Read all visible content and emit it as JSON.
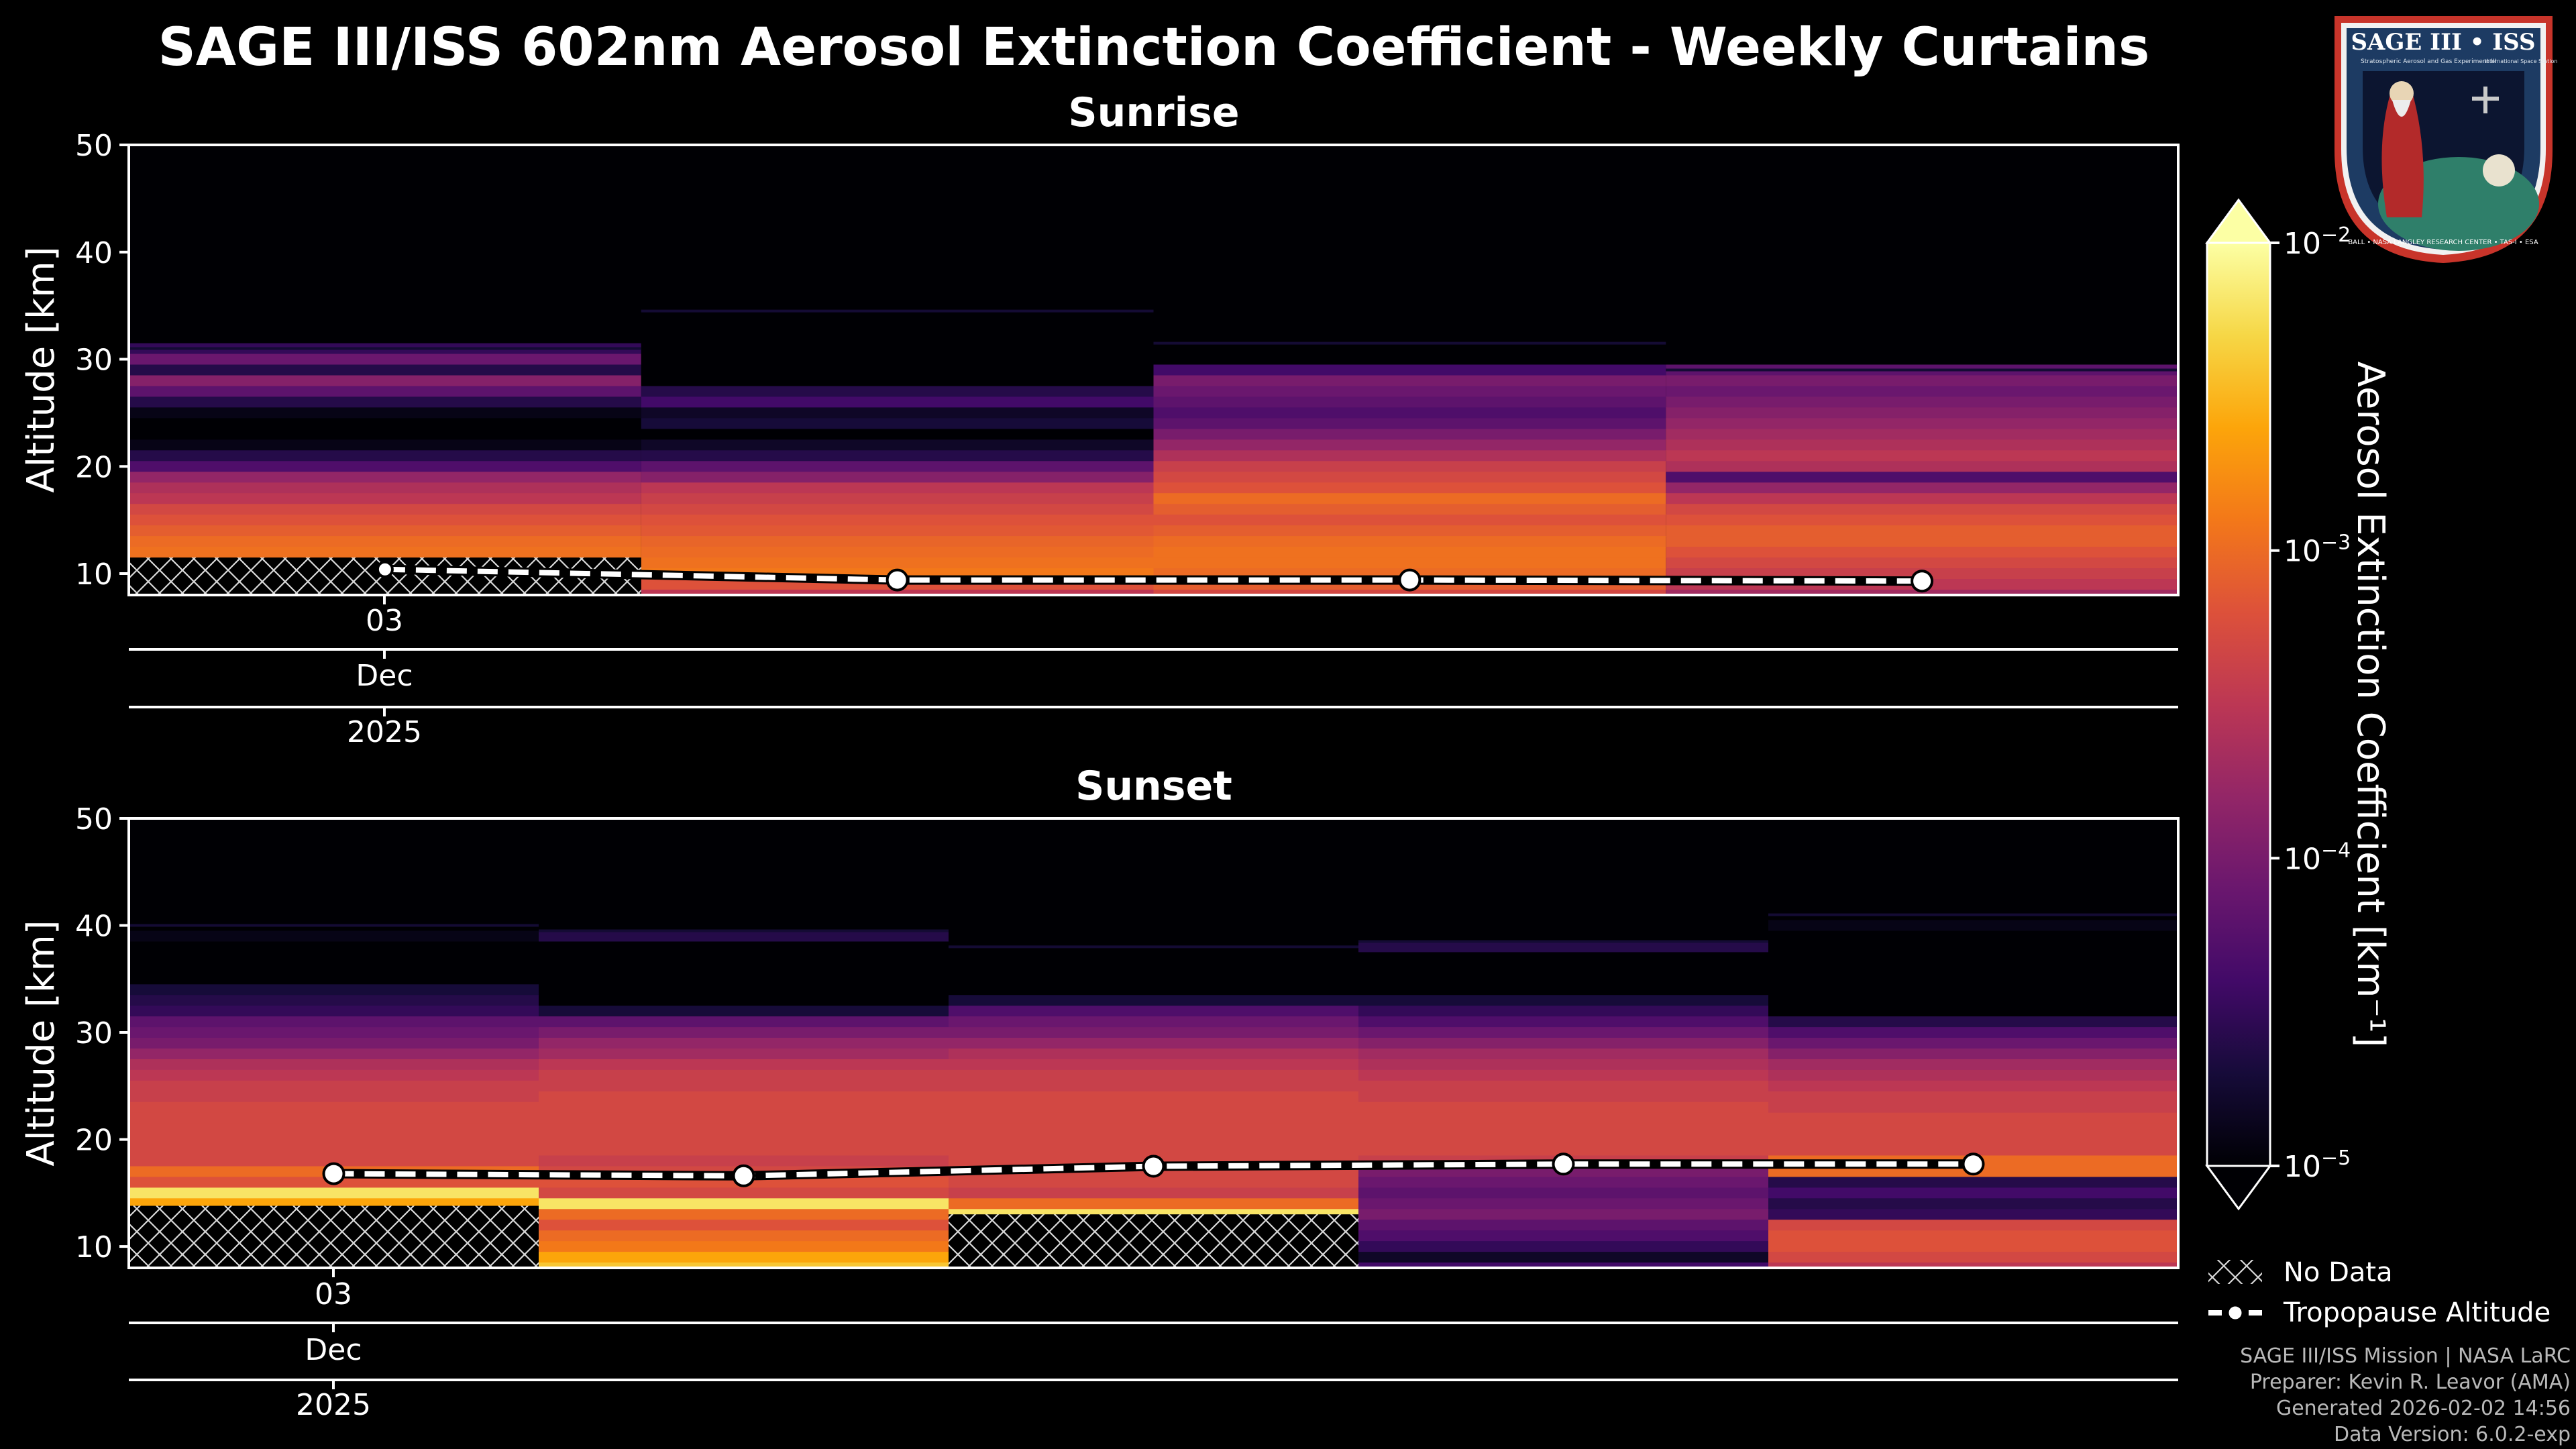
{
  "figure": {
    "title": "SAGE III/ISS 602nm Aerosol Extinction Coefficient - Weekly Curtains",
    "logo": {
      "title": "SAGE III • ISS",
      "subtitle": "Stratospheric Aerosol and Gas Experiment III",
      "station": "International Space Station",
      "ring": "BALL • NASA LANGLEY RESEARCH CENTER • TAS-I • ESA"
    },
    "credits": [
      "SAGE III/ISS Mission | NASA LaRC",
      "Preparer: Kevin R. Leavor (AMA)",
      "Generated 2026-02-02 14:56",
      "Data Version: 6.0.2-exp"
    ],
    "legend": {
      "no_data": "No Data",
      "tropopause": "Tropopause Altitude"
    },
    "colors": {
      "background": "#000000",
      "colormap": "inferno",
      "hatch": "#d9d9d9",
      "tropopause_line": "#ffffff"
    }
  },
  "chart_data": [
    {
      "type": "heatmap",
      "title": "Sunrise",
      "ylabel": "Altitude [km]",
      "ylim": [
        8,
        50
      ],
      "yticks": [
        10,
        20,
        30,
        40,
        50
      ],
      "xtick_label": {
        "day": "03",
        "month": "Dec",
        "year": "2025"
      },
      "columns": [
        {
          "week": 1,
          "top_km": 31,
          "no_data_below_km": 11.5,
          "profile": [
            [
              31,
              -4.5
            ],
            [
              30,
              -4.1
            ],
            [
              29,
              -4.6
            ],
            [
              28,
              -3.9
            ],
            [
              27,
              -4.2
            ],
            [
              26,
              -4.6
            ],
            [
              25,
              -4.9
            ],
            [
              24,
              -5
            ],
            [
              23,
              -5
            ],
            [
              22,
              -4.9
            ],
            [
              21,
              -4.6
            ],
            [
              20,
              -4.3
            ],
            [
              19,
              -3.8
            ],
            [
              18,
              -3.6
            ],
            [
              17,
              -3.5
            ],
            [
              16,
              -3.3
            ],
            [
              15,
              -3.2
            ],
            [
              14,
              -3.1
            ],
            [
              13,
              -3.0
            ],
            [
              12,
              -2.95
            ],
            [
              11,
              -2.95
            ]
          ]
        },
        {
          "week": 2,
          "top_km": 34.5,
          "no_data_below_km": null,
          "profile": [
            [
              34,
              -5
            ],
            [
              33,
              -5
            ],
            [
              32,
              -5
            ],
            [
              31,
              -5
            ],
            [
              30,
              -5
            ],
            [
              29,
              -5
            ],
            [
              28,
              -5
            ],
            [
              27,
              -4.6
            ],
            [
              26,
              -4.4
            ],
            [
              25,
              -4.8
            ],
            [
              24,
              -4.7
            ],
            [
              23,
              -5
            ],
            [
              22,
              -4.8
            ],
            [
              21,
              -4.6
            ],
            [
              20,
              -4.2
            ],
            [
              19,
              -3.9
            ],
            [
              18,
              -3.5
            ],
            [
              17,
              -3.4
            ],
            [
              16,
              -3.3
            ],
            [
              15,
              -3.2
            ],
            [
              14,
              -3.15
            ],
            [
              13,
              -3.05
            ],
            [
              12,
              -3.0
            ],
            [
              11,
              -2.95
            ],
            [
              10,
              -2.9
            ],
            [
              9,
              -3.2
            ],
            [
              8,
              -3.5
            ]
          ]
        },
        {
          "week": 3,
          "top_km": 31.5,
          "no_data_below_km": null,
          "profile": [
            [
              31,
              -5
            ],
            [
              30,
              -5
            ],
            [
              29,
              -4.4
            ],
            [
              28,
              -4.0
            ],
            [
              27,
              -4.1
            ],
            [
              26,
              -4.2
            ],
            [
              25,
              -4.3
            ],
            [
              24,
              -4.2
            ],
            [
              23,
              -4.0
            ],
            [
              22,
              -3.8
            ],
            [
              21,
              -3.6
            ],
            [
              20,
              -3.4
            ],
            [
              19,
              -3.3
            ],
            [
              18,
              -3.2
            ],
            [
              17,
              -3.0
            ],
            [
              16,
              -3.1
            ],
            [
              15,
              -3.2
            ],
            [
              14,
              -3.1
            ],
            [
              13,
              -3.0
            ],
            [
              12,
              -2.95
            ],
            [
              11,
              -2.95
            ],
            [
              10,
              -3.0
            ],
            [
              9,
              -3.1
            ],
            [
              8,
              -3.3
            ]
          ]
        },
        {
          "week": 4,
          "top_km": 29,
          "no_data_below_km": null,
          "profile": [
            [
              29,
              -4.2
            ],
            [
              28,
              -4.0
            ],
            [
              27,
              -4.1
            ],
            [
              26,
              -4.0
            ],
            [
              25,
              -3.9
            ],
            [
              24,
              -3.8
            ],
            [
              23,
              -3.7
            ],
            [
              22,
              -3.6
            ],
            [
              21,
              -3.5
            ],
            [
              20,
              -3.6
            ],
            [
              19,
              -4.3
            ],
            [
              18,
              -3.8
            ],
            [
              17,
              -3.5
            ],
            [
              16,
              -3.3
            ],
            [
              15,
              -3.2
            ],
            [
              14,
              -3.1
            ],
            [
              13,
              -3.1
            ],
            [
              12,
              -3.2
            ],
            [
              11,
              -3.3
            ],
            [
              10,
              -3.4
            ],
            [
              9,
              -3.5
            ],
            [
              8,
              -3.7
            ]
          ]
        }
      ],
      "tropopause": [
        10.4,
        9.4,
        9.4,
        9.3
      ]
    },
    {
      "type": "heatmap",
      "title": "Sunset",
      "ylabel": "Altitude [km]",
      "ylim": [
        8,
        50
      ],
      "yticks": [
        10,
        20,
        30,
        40,
        50
      ],
      "xtick_label": {
        "day": "03",
        "month": "Dec",
        "year": "2025"
      },
      "columns": [
        {
          "week": 1,
          "top_km": 40,
          "no_data_below_km": 13.8,
          "profile": [
            [
              39,
              -4.9
            ],
            [
              38,
              -5
            ],
            [
              37,
              -5
            ],
            [
              36,
              -5
            ],
            [
              35,
              -5
            ],
            [
              34,
              -4.7
            ],
            [
              33,
              -4.6
            ],
            [
              32,
              -4.5
            ],
            [
              31,
              -4.2
            ],
            [
              30,
              -4.1
            ],
            [
              29,
              -4.0
            ],
            [
              28,
              -3.8
            ],
            [
              27,
              -3.6
            ],
            [
              26,
              -3.5
            ],
            [
              25,
              -3.4
            ],
            [
              24,
              -3.4
            ],
            [
              23,
              -3.3
            ],
            [
              22,
              -3.3
            ],
            [
              21,
              -3.3
            ],
            [
              20,
              -3.3
            ],
            [
              19,
              -3.3
            ],
            [
              18,
              -3.3
            ],
            [
              17,
              -3.0
            ],
            [
              16,
              -3.2
            ],
            [
              15,
              -2.2
            ],
            [
              14,
              -2.6
            ]
          ]
        },
        {
          "week": 2,
          "top_km": 39.5,
          "no_data_below_km": null,
          "profile": [
            [
              39,
              -4.6
            ],
            [
              38,
              -5
            ],
            [
              37,
              -5
            ],
            [
              36,
              -5
            ],
            [
              35,
              -5
            ],
            [
              34,
              -5
            ],
            [
              33,
              -5
            ],
            [
              32,
              -4.7
            ],
            [
              31,
              -4.2
            ],
            [
              30,
              -4.0
            ],
            [
              29,
              -3.8
            ],
            [
              28,
              -3.7
            ],
            [
              27,
              -3.5
            ],
            [
              26,
              -3.4
            ],
            [
              25,
              -3.4
            ],
            [
              24,
              -3.3
            ],
            [
              23,
              -3.3
            ],
            [
              22,
              -3.3
            ],
            [
              21,
              -3.3
            ],
            [
              20,
              -3.3
            ],
            [
              19,
              -3.3
            ],
            [
              18,
              -3.4
            ],
            [
              17,
              -3.3
            ],
            [
              16,
              -3.2
            ],
            [
              15,
              -3.3
            ],
            [
              14,
              -2.2
            ],
            [
              13,
              -3.0
            ],
            [
              12,
              -3.2
            ],
            [
              11,
              -3.0
            ],
            [
              10,
              -2.9
            ],
            [
              9,
              -2.6
            ],
            [
              8,
              -2.4
            ]
          ]
        },
        {
          "week": 3,
          "top_km": 38,
          "no_data_below_km": 13.0,
          "profile": [
            [
              37,
              -5
            ],
            [
              36,
              -5
            ],
            [
              35,
              -5
            ],
            [
              34,
              -5
            ],
            [
              33,
              -4.7
            ],
            [
              32,
              -4.3
            ],
            [
              31,
              -4.1
            ],
            [
              30,
              -4.0
            ],
            [
              29,
              -3.8
            ],
            [
              28,
              -3.6
            ],
            [
              27,
              -3.5
            ],
            [
              26,
              -3.4
            ],
            [
              25,
              -3.4
            ],
            [
              24,
              -3.3
            ],
            [
              23,
              -3.3
            ],
            [
              22,
              -3.3
            ],
            [
              21,
              -3.3
            ],
            [
              20,
              -3.3
            ],
            [
              19,
              -3.3
            ],
            [
              18,
              -3.3
            ],
            [
              17,
              -3.3
            ],
            [
              16,
              -3.3
            ],
            [
              15,
              -3.4
            ],
            [
              14,
              -3.0
            ],
            [
              13,
              -2.2
            ]
          ]
        },
        {
          "week": 4,
          "top_km": 38.5,
          "no_data_below_km": null,
          "profile": [
            [
              38,
              -4.6
            ],
            [
              37,
              -5
            ],
            [
              36,
              -5
            ],
            [
              35,
              -5
            ],
            [
              34,
              -5
            ],
            [
              33,
              -4.7
            ],
            [
              32,
              -4.5
            ],
            [
              31,
              -4.3
            ],
            [
              30,
              -4.1
            ],
            [
              29,
              -3.9
            ],
            [
              28,
              -3.7
            ],
            [
              27,
              -3.6
            ],
            [
              26,
              -3.5
            ],
            [
              25,
              -3.4
            ],
            [
              24,
              -3.4
            ],
            [
              23,
              -3.3
            ],
            [
              22,
              -3.3
            ],
            [
              21,
              -3.3
            ],
            [
              20,
              -3.3
            ],
            [
              19,
              -3.3
            ],
            [
              18,
              -3.4
            ],
            [
              17,
              -4.0
            ],
            [
              16,
              -4.1
            ],
            [
              15,
              -4.2
            ],
            [
              14,
              -4.1
            ],
            [
              13,
              -4.0
            ],
            [
              12,
              -4.2
            ],
            [
              11,
              -4.3
            ],
            [
              10,
              -4.5
            ],
            [
              9,
              -4.8
            ],
            [
              8,
              -4.4
            ]
          ]
        },
        {
          "week": 5,
          "top_km": 41,
          "no_data_below_km": null,
          "profile": [
            [
              40,
              -4.9
            ],
            [
              39,
              -5
            ],
            [
              38,
              -5
            ],
            [
              37,
              -5
            ],
            [
              36,
              -5
            ],
            [
              35,
              -5
            ],
            [
              34,
              -5
            ],
            [
              33,
              -5
            ],
            [
              32,
              -5
            ],
            [
              31,
              -4.6
            ],
            [
              30,
              -4.3
            ],
            [
              29,
              -4.1
            ],
            [
              28,
              -3.9
            ],
            [
              27,
              -3.7
            ],
            [
              26,
              -3.6
            ],
            [
              25,
              -3.5
            ],
            [
              24,
              -3.4
            ],
            [
              23,
              -3.4
            ],
            [
              22,
              -3.3
            ],
            [
              21,
              -3.3
            ],
            [
              20,
              -3.3
            ],
            [
              19,
              -3.3
            ],
            [
              18,
              -3.0
            ],
            [
              17,
              -3.0
            ],
            [
              16,
              -4.6
            ],
            [
              15,
              -4.4
            ],
            [
              14,
              -4.6
            ],
            [
              13,
              -4.5
            ],
            [
              12,
              -3.3
            ],
            [
              11,
              -3.2
            ],
            [
              10,
              -3.2
            ],
            [
              9,
              -3.3
            ],
            [
              8,
              -3.5
            ]
          ]
        }
      ],
      "tropopause": [
        16.8,
        16.6,
        17.5,
        17.7,
        17.7
      ]
    }
  ],
  "colorbar": {
    "label": "Aerosol Extinction Coefficient [km⁻¹]",
    "scale": "log",
    "range_log10": [
      -5,
      -2
    ],
    "ticks": [
      {
        "value": -2,
        "base": "10",
        "exp": "−2"
      },
      {
        "value": -3,
        "base": "10",
        "exp": "−3"
      },
      {
        "value": -4,
        "base": "10",
        "exp": "−4"
      },
      {
        "value": -5,
        "base": "10",
        "exp": "−5"
      }
    ]
  }
}
